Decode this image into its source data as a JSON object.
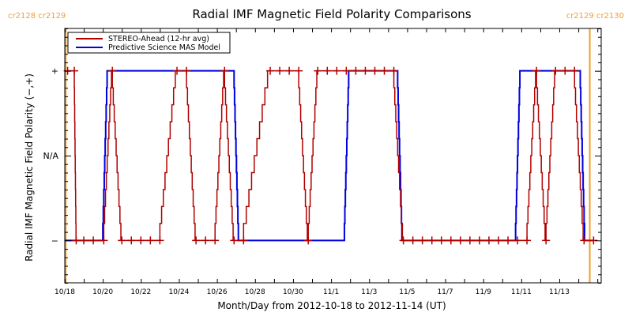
{
  "chart_data": {
    "type": "line",
    "title": "Radial IMF Magnetic Field Polarity Comparisons",
    "xlabel": "Month/Day from 2012-10-18 to 2012-11-14 (UT)",
    "ylabel": "Radial IMF Magnetic Field Polarity (−,+)",
    "x_unit": "days since 2012-10-18 00:00 UT",
    "xlim": [
      0,
      28.2
    ],
    "ylim": [
      -1.5,
      1.5
    ],
    "x_ticks": [
      {
        "x": 0,
        "label": "10/18"
      },
      {
        "x": 2,
        "label": "10/20"
      },
      {
        "x": 4,
        "label": "10/22"
      },
      {
        "x": 6,
        "label": "10/24"
      },
      {
        "x": 8,
        "label": "10/26"
      },
      {
        "x": 10,
        "label": "10/28"
      },
      {
        "x": 12,
        "label": "10/30"
      },
      {
        "x": 14,
        "label": "11/1"
      },
      {
        "x": 16,
        "label": "11/3"
      },
      {
        "x": 18,
        "label": "11/5"
      },
      {
        "x": 20,
        "label": "11/7"
      },
      {
        "x": 22,
        "label": "11/9"
      },
      {
        "x": 24,
        "label": "11/11"
      },
      {
        "x": 26,
        "label": "11/13"
      }
    ],
    "y_ticks": [
      {
        "y": 1,
        "label": "+"
      },
      {
        "y": 0,
        "label": "N/A"
      },
      {
        "y": -1,
        "label": "−"
      }
    ],
    "carrington_markers": [
      {
        "x": 0.05,
        "label": "cr2128 cr2129",
        "side": "left"
      },
      {
        "x": 27.6,
        "label": "cr2129 cr2130",
        "side": "right"
      }
    ],
    "legend_position": "top-left",
    "series": [
      {
        "name": "STEREO-Ahead (12-hr avg)",
        "color": "#b00000",
        "markers": "plus",
        "points": [
          [
            0.15,
            1
          ],
          [
            0.5,
            1
          ],
          [
            0.6,
            -1
          ],
          [
            1.0,
            -1
          ],
          [
            1.5,
            -1
          ],
          [
            2.05,
            -1
          ],
          [
            2.5,
            1
          ],
          [
            3.0,
            -1
          ],
          [
            3.5,
            -1
          ],
          [
            4.0,
            -1
          ],
          [
            4.5,
            -1
          ],
          [
            5.0,
            -1
          ],
          [
            5.9,
            1
          ],
          [
            6.4,
            1
          ],
          [
            6.9,
            -1
          ],
          [
            7.4,
            -1
          ],
          [
            7.9,
            -1
          ],
          [
            8.4,
            1
          ],
          [
            8.9,
            -1
          ],
          [
            9.4,
            -1
          ],
          [
            10.8,
            1
          ],
          [
            11.3,
            1
          ],
          [
            11.8,
            1
          ],
          [
            12.3,
            1
          ],
          [
            12.8,
            -1
          ],
          [
            13.3,
            1
          ],
          [
            13.8,
            1
          ],
          [
            14.3,
            1
          ],
          [
            14.8,
            1
          ],
          [
            15.3,
            1
          ],
          [
            15.8,
            1
          ],
          [
            16.3,
            1
          ],
          [
            16.8,
            1
          ],
          [
            17.3,
            1
          ],
          [
            17.8,
            -1
          ],
          [
            18.3,
            -1
          ],
          [
            18.8,
            -1
          ],
          [
            19.3,
            -1
          ],
          [
            19.8,
            -1
          ],
          [
            20.3,
            -1
          ],
          [
            20.8,
            -1
          ],
          [
            21.3,
            -1
          ],
          [
            21.8,
            -1
          ],
          [
            22.3,
            -1
          ],
          [
            22.8,
            -1
          ],
          [
            23.3,
            -1
          ],
          [
            23.8,
            -1
          ],
          [
            24.3,
            -1
          ],
          [
            24.8,
            1
          ],
          [
            25.3,
            -1
          ],
          [
            25.8,
            1
          ],
          [
            26.3,
            1
          ],
          [
            26.8,
            1
          ],
          [
            27.3,
            -1
          ],
          [
            27.8,
            -1
          ]
        ]
      },
      {
        "name": "Predictive Science MAS Model",
        "color": "#0000e0",
        "points": [
          [
            0.0,
            -1
          ],
          [
            2.0,
            -1
          ],
          [
            2.25,
            1
          ],
          [
            8.9,
            1
          ],
          [
            9.15,
            -1
          ],
          [
            14.7,
            -1
          ],
          [
            14.95,
            1
          ],
          [
            17.5,
            1
          ],
          [
            17.75,
            -1
          ],
          [
            23.7,
            -1
          ],
          [
            23.95,
            1
          ],
          [
            27.1,
            1
          ],
          [
            27.35,
            -1
          ],
          [
            27.8,
            -1
          ]
        ]
      }
    ]
  }
}
